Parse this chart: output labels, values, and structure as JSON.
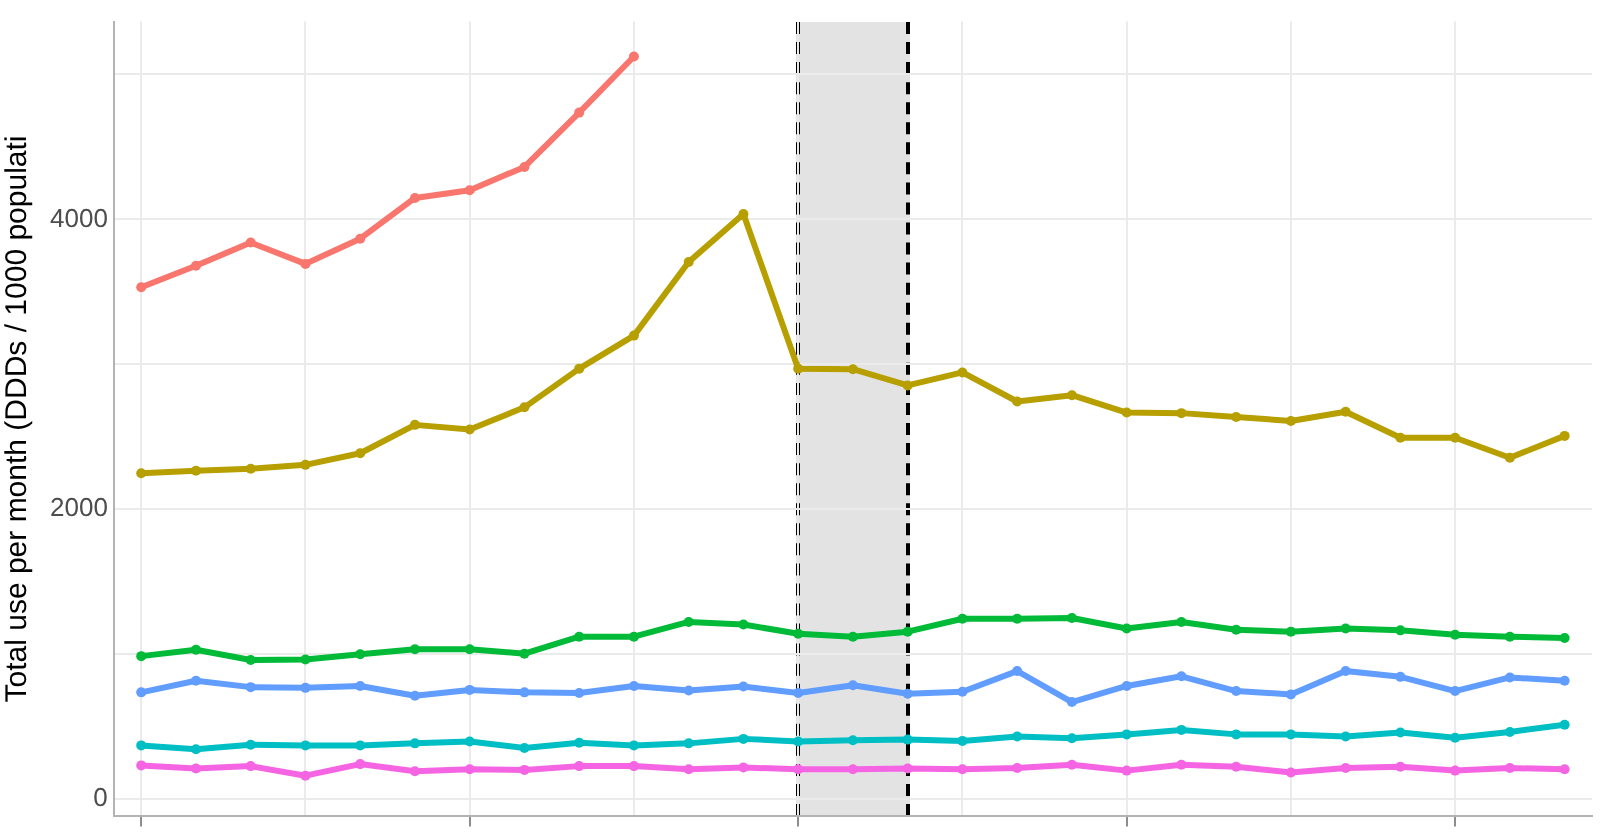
{
  "chart_data": {
    "type": "line",
    "ylabel": "Total use per month (DDDs / 1000 populati",
    "categories": [
      null,
      null,
      null,
      null,
      null,
      null,
      null,
      null,
      null,
      null,
      null,
      null,
      null,
      null,
      null,
      null,
      null,
      null,
      null,
      null,
      null,
      null,
      null,
      null,
      null,
      null,
      null
    ],
    "ylim": [
      -120,
      5365
    ],
    "yticks": [
      0,
      {
        "value": 1000,
        "label": null
      },
      2000,
      {
        "value": 3000,
        "label": null
      },
      4000,
      {
        "value": 5000,
        "label": null
      }
    ],
    "grid": true,
    "marker": "circle",
    "line_style": "solid",
    "series": [
      {
        "color": "#f8766d",
        "values": [
          3532,
          3680,
          3840,
          3693,
          3867,
          4148,
          4201,
          4362,
          4737,
          5124,
          null,
          null,
          null,
          null,
          null,
          null,
          null,
          null,
          null,
          null,
          null,
          null,
          null,
          null,
          null,
          null,
          null
        ]
      },
      {
        "color": "#b79f00",
        "values": [
          2248,
          2265,
          2279,
          2306,
          2386,
          2582,
          2550,
          2703,
          2970,
          3198,
          3706,
          4037,
          2970,
          2966,
          2854,
          2944,
          2743,
          2787,
          2667,
          2663,
          2636,
          2609,
          2672,
          2493,
          2493,
          2355,
          2506
        ]
      },
      {
        "color": "#00ba38",
        "values": [
          986,
          1030,
          959,
          963,
          999,
          1034,
          1034,
          1003,
          1120,
          1120,
          1222,
          1204,
          1141,
          1120,
          1155,
          1244,
          1244,
          1249,
          1177,
          1222,
          1168,
          1155,
          1177,
          1164,
          1133,
          1120,
          1111
        ]
      },
      {
        "color": "#619cff",
        "values": [
          736,
          816,
          772,
          767,
          780,
          713,
          753,
          736,
          731,
          780,
          749,
          776,
          731,
          785,
          727,
          740,
          883,
          669,
          780,
          847,
          745,
          722,
          883,
          843,
          745,
          839,
          816
        ]
      },
      {
        "color": "#00bfc4",
        "values": [
          370,
          344,
          375,
          370,
          370,
          384,
          397,
          352,
          388,
          370,
          384,
          415,
          397,
          406,
          410,
          401,
          432,
          419,
          446,
          477,
          446,
          446,
          432,
          459,
          423,
          463,
          512
        ]
      },
      {
        "color": "#f564e3",
        "values": [
          232,
          210,
          227,
          161,
          241,
          192,
          205,
          201,
          227,
          227,
          205,
          218,
          205,
          205,
          210,
          205,
          214,
          237,
          196,
          237,
          223,
          183,
          214,
          223,
          196,
          214,
          205
        ]
      }
    ]
  }
}
